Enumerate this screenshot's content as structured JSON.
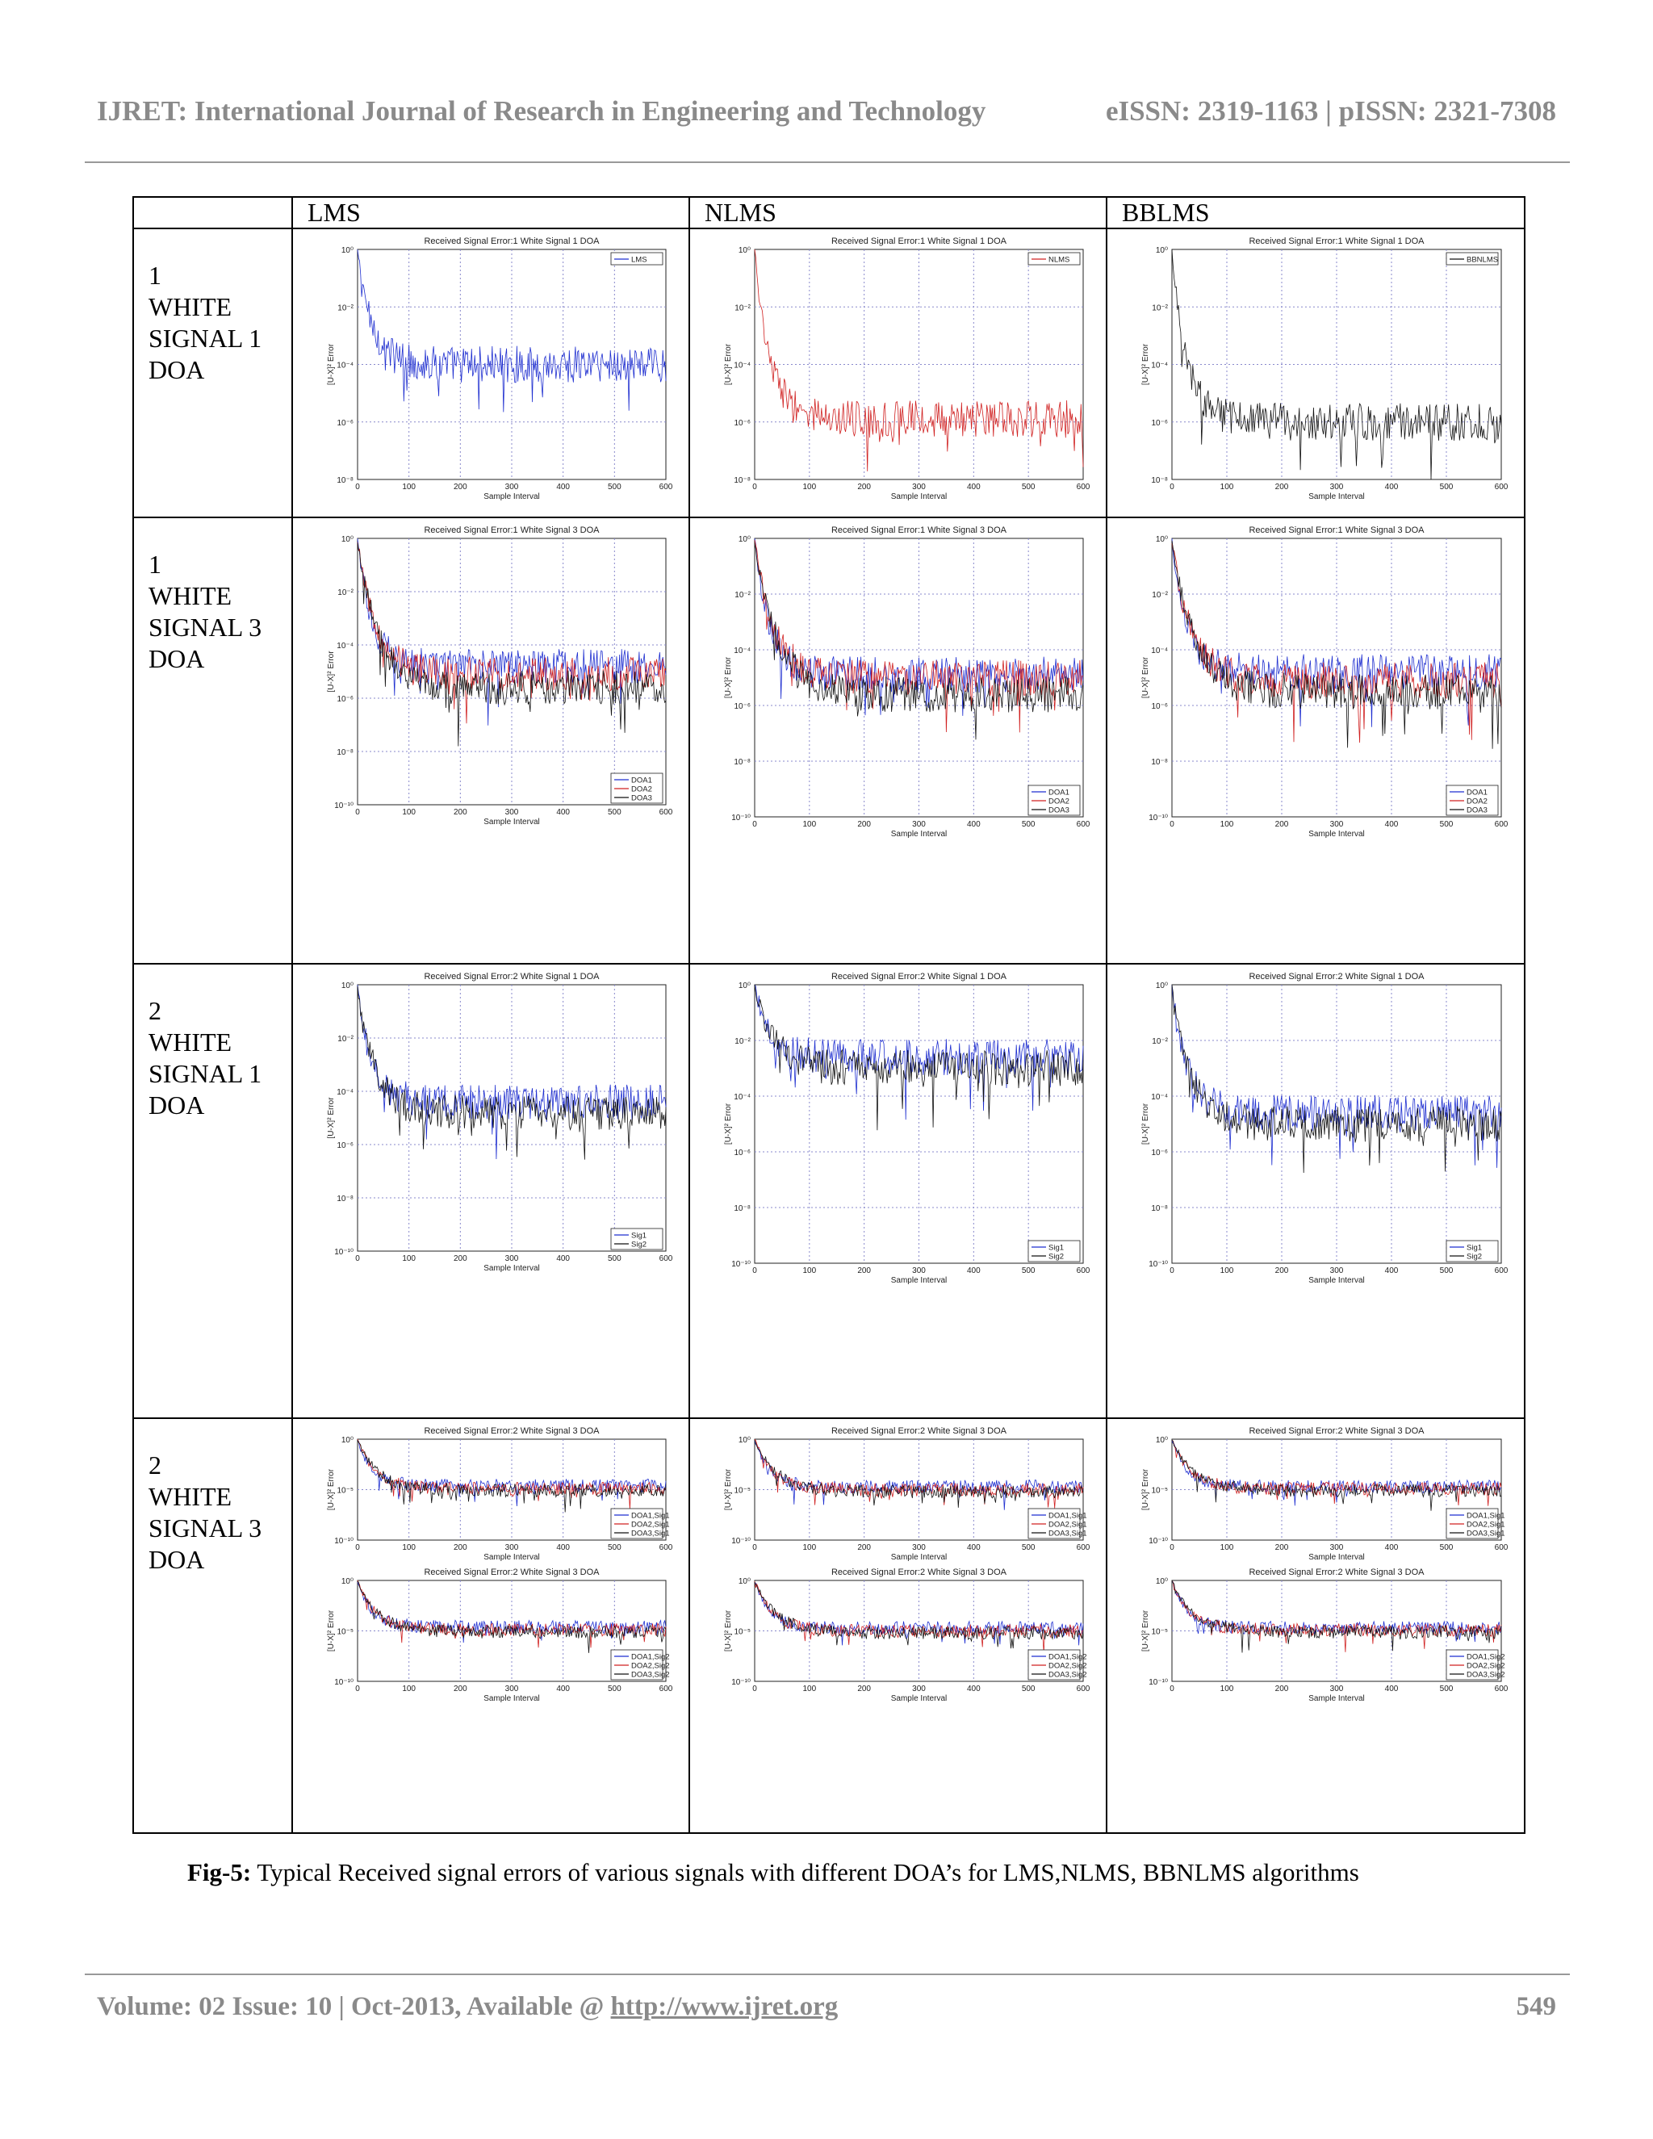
{
  "header": {
    "journal": "IJRET: International Journal of Research in Engineering and Technology",
    "issn": "eISSN: 2319-1163 | pISSN: 2321-7308"
  },
  "table": {
    "columns": [
      "",
      "LMS",
      "NLMS",
      "BBLMS"
    ],
    "rows": [
      {
        "label": [
          "1",
          "WHITE",
          "SIGNAL 1",
          "DOA"
        ]
      },
      {
        "label": [
          "1",
          "WHITE",
          "SIGNAL 3",
          "DOA"
        ]
      },
      {
        "label": [
          "2",
          "WHITE",
          "SIGNAL 1",
          "DOA"
        ]
      },
      {
        "label": [
          "2",
          "WHITE",
          "SIGNAL 3",
          "DOA"
        ]
      }
    ]
  },
  "colors": {
    "blue": "#1f2fd0",
    "red": "#d02020",
    "black": "#111111"
  },
  "chart_data": [
    {
      "id": "r1-lms",
      "type": "line",
      "title": "Received Signal Error:1 White Signal 1 DOA",
      "xlabel": "Sample Interval",
      "ylabel": "[U-X]² Error",
      "xlim": [
        0,
        600
      ],
      "xticks": [
        "0",
        "100",
        "200",
        "300",
        "400",
        "500",
        "600"
      ],
      "ylim_exp": [
        -8,
        0
      ],
      "yticks": [
        "10⁰",
        "10⁻²",
        "10⁻⁴",
        "10⁻⁶",
        "10⁻⁸"
      ],
      "legend_pos": "top-right",
      "series": [
        {
          "name": "LMS",
          "color": "blue",
          "level": -4
        }
      ]
    },
    {
      "id": "r1-nlms",
      "type": "line",
      "title": "Received Signal Error:1 White Signal 1 DOA",
      "xlabel": "Sample Interval",
      "ylabel": "[U-X]² Error",
      "xlim": [
        0,
        600
      ],
      "xticks": [
        "0",
        "100",
        "200",
        "300",
        "400",
        "500",
        "600"
      ],
      "ylim_exp": [
        -8,
        0
      ],
      "yticks": [
        "10⁰",
        "10⁻²",
        "10⁻⁴",
        "10⁻⁶",
        "10⁻⁸"
      ],
      "legend_pos": "top-right",
      "series": [
        {
          "name": "NLMS",
          "color": "red",
          "level": -5.9
        }
      ]
    },
    {
      "id": "r1-bblms",
      "type": "line",
      "title": "Received Signal Error:1 White Signal 1 DOA",
      "xlabel": "Sample Interval",
      "ylabel": "[U-X]² Error",
      "xlim": [
        0,
        600
      ],
      "xticks": [
        "0",
        "100",
        "200",
        "300",
        "400",
        "500",
        "600"
      ],
      "ylim_exp": [
        -8,
        0
      ],
      "yticks": [
        "10⁰",
        "10⁻²",
        "10⁻⁴",
        "10⁻⁶",
        "10⁻⁸"
      ],
      "legend_pos": "top-right",
      "series": [
        {
          "name": "BBNLMS",
          "color": "black",
          "level": -6
        }
      ]
    },
    {
      "id": "r2-lms",
      "type": "line",
      "title": "Received Signal Error:1 White Signal 3 DOA",
      "xlabel": "Sample Interval",
      "ylabel": "[U-X]² Error",
      "xlim": [
        0,
        600
      ],
      "xticks": [
        "0",
        "100",
        "200",
        "300",
        "400",
        "500",
        "600"
      ],
      "ylim_exp": [
        -10,
        0
      ],
      "yticks": [
        "10⁰",
        "10⁻²",
        "10⁻⁴",
        "10⁻⁶",
        "10⁻⁸",
        "10⁻¹⁰"
      ],
      "legend_pos": "bottom-right",
      "series": [
        {
          "name": "DOA1",
          "color": "blue",
          "level": -4.8
        },
        {
          "name": "DOA2",
          "color": "red",
          "level": -5.1
        },
        {
          "name": "DOA3",
          "color": "black",
          "level": -5.6
        }
      ]
    },
    {
      "id": "r2-nlms",
      "type": "line",
      "title": "Received Signal Error:1 White Signal 3 DOA",
      "xlabel": "Sample Interval",
      "ylabel": "[U-X]² Error",
      "xlim": [
        0,
        600
      ],
      "xticks": [
        "0",
        "100",
        "200",
        "300",
        "400",
        "500",
        "600"
      ],
      "ylim_exp": [
        -10,
        0
      ],
      "yticks": [
        "10⁰",
        "10⁻²",
        "10⁻⁴",
        "10⁻⁶",
        "10⁻⁸",
        "10⁻¹⁰"
      ],
      "legend_pos": "bottom-right",
      "series": [
        {
          "name": "DOA1",
          "color": "blue",
          "level": -4.9
        },
        {
          "name": "DOA2",
          "color": "red",
          "level": -5.0
        },
        {
          "name": "DOA3",
          "color": "black",
          "level": -5.6
        }
      ]
    },
    {
      "id": "r2-bblms",
      "type": "line",
      "title": "Received Signal Error:1 White Signal 3 DOA",
      "xlabel": "Sample Interval",
      "ylabel": "[U-X]² Error",
      "xlim": [
        0,
        600
      ],
      "xticks": [
        "0",
        "100",
        "200",
        "300",
        "400",
        "500",
        "600"
      ],
      "ylim_exp": [
        -10,
        0
      ],
      "yticks": [
        "10⁰",
        "10⁻²",
        "10⁻⁴",
        "10⁻⁶",
        "10⁻⁸",
        "10⁻¹⁰"
      ],
      "legend_pos": "bottom-right",
      "series": [
        {
          "name": "DOA1",
          "color": "blue",
          "level": -4.8
        },
        {
          "name": "DOA2",
          "color": "red",
          "level": -5.1
        },
        {
          "name": "DOA3",
          "color": "black",
          "level": -5.5
        }
      ]
    },
    {
      "id": "r3-lms",
      "type": "line",
      "title": "Received Signal Error:2 White Signal 1 DOA",
      "xlabel": "Sample Interval",
      "ylabel": "[U-X]² Error",
      "xlim": [
        0,
        600
      ],
      "xticks": [
        "0",
        "100",
        "200",
        "300",
        "400",
        "500",
        "600"
      ],
      "ylim_exp": [
        -10,
        0
      ],
      "yticks": [
        "10⁰",
        "10⁻²",
        "10⁻⁴",
        "10⁻⁶",
        "10⁻⁸",
        "10⁻¹⁰"
      ],
      "legend_pos": "bottom-right",
      "series": [
        {
          "name": "Sig1",
          "color": "blue",
          "level": -4.4
        },
        {
          "name": "Sig2",
          "color": "black",
          "level": -4.8
        }
      ]
    },
    {
      "id": "r3-nlms",
      "type": "line",
      "title": "Received Signal Error:2 White Signal 1 DOA",
      "xlabel": "Sample Interval",
      "ylabel": "[U-X]² Error",
      "xlim": [
        0,
        600
      ],
      "xticks": [
        "0",
        "100",
        "200",
        "300",
        "400",
        "500",
        "600"
      ],
      "ylim_exp": [
        -10,
        0
      ],
      "yticks": [
        "10⁰",
        "10⁻²",
        "10⁻⁴",
        "10⁻⁶",
        "10⁻⁸",
        "10⁻¹⁰"
      ],
      "legend_pos": "bottom-right",
      "series": [
        {
          "name": "Sig1",
          "color": "blue",
          "level": -2.6
        },
        {
          "name": "Sig2",
          "color": "black",
          "level": -3.0
        }
      ]
    },
    {
      "id": "r3-bblms",
      "type": "line",
      "title": "Received Signal Error:2 White Signal 1 DOA",
      "xlabel": "Sample Interval",
      "ylabel": "[U-X]² Error",
      "xlim": [
        0,
        600
      ],
      "xticks": [
        "0",
        "100",
        "200",
        "300",
        "400",
        "500",
        "600"
      ],
      "ylim_exp": [
        -10,
        0
      ],
      "yticks": [
        "10⁰",
        "10⁻²",
        "10⁻⁴",
        "10⁻⁶",
        "10⁻⁸",
        "10⁻¹⁰"
      ],
      "legend_pos": "bottom-right",
      "series": [
        {
          "name": "Sig1",
          "color": "blue",
          "level": -4.6
        },
        {
          "name": "Sig2",
          "color": "black",
          "level": -5.0
        }
      ]
    },
    {
      "id": "r4-lms-a",
      "type": "line",
      "title": "Received Signal Error:2 White Signal 3 DOA",
      "xlabel": "Sample Interval",
      "ylabel": "[U-X]² Error",
      "xlim": [
        0,
        600
      ],
      "xticks": [
        "0",
        "100",
        "200",
        "300",
        "400",
        "500",
        "600"
      ],
      "ylim_exp": [
        -10,
        0
      ],
      "yticks": [
        "10⁰",
        "10⁻⁵",
        "10⁻¹⁰"
      ],
      "legend_pos": "bottom-right",
      "series": [
        {
          "name": "DOA1,Sig1",
          "color": "blue",
          "level": -4.6
        },
        {
          "name": "DOA2,Sig1",
          "color": "red",
          "level": -4.9
        },
        {
          "name": "DOA3,Sig1",
          "color": "black",
          "level": -5.1
        }
      ]
    },
    {
      "id": "r4-lms-b",
      "type": "line",
      "title": "Received Signal Error:2 White Signal 3 DOA",
      "xlabel": "Sample Interval",
      "ylabel": "[U-X]² Error",
      "xlim": [
        0,
        600
      ],
      "xticks": [
        "0",
        "100",
        "200",
        "300",
        "400",
        "500",
        "600"
      ],
      "ylim_exp": [
        -10,
        0
      ],
      "yticks": [
        "10⁰",
        "10⁻⁵",
        "10⁻¹⁰"
      ],
      "legend_pos": "bottom-right",
      "series": [
        {
          "name": "DOA1,Sig2",
          "color": "blue",
          "level": -4.6
        },
        {
          "name": "DOA2,Sig2",
          "color": "red",
          "level": -4.9
        },
        {
          "name": "DOA3,Sig2",
          "color": "black",
          "level": -5.1
        }
      ]
    },
    {
      "id": "r4-nlms-a",
      "type": "line",
      "title": "Received Signal Error:2 White Signal 3 DOA",
      "xlabel": "Sample Interval",
      "ylabel": "[U-X]² Error",
      "xlim": [
        0,
        600
      ],
      "xticks": [
        "0",
        "100",
        "200",
        "300",
        "400",
        "500",
        "600"
      ],
      "ylim_exp": [
        -10,
        0
      ],
      "yticks": [
        "10⁰",
        "10⁻⁵",
        "10⁻¹⁰"
      ],
      "legend_pos": "bottom-right",
      "series": [
        {
          "name": "DOA1,Sig1",
          "color": "blue",
          "level": -4.7
        },
        {
          "name": "DOA2,Sig1",
          "color": "red",
          "level": -5.0
        },
        {
          "name": "DOA3,Sig1",
          "color": "black",
          "level": -5.2
        }
      ]
    },
    {
      "id": "r4-nlms-b",
      "type": "line",
      "title": "Received Signal Error:2 White Signal 3 DOA",
      "xlabel": "Sample Interval",
      "ylabel": "[U-X]² Error",
      "xlim": [
        0,
        600
      ],
      "xticks": [
        "0",
        "100",
        "200",
        "300",
        "400",
        "500",
        "600"
      ],
      "ylim_exp": [
        -10,
        0
      ],
      "yticks": [
        "10⁰",
        "10⁻⁵",
        "10⁻¹⁰"
      ],
      "legend_pos": "bottom-right",
      "series": [
        {
          "name": "DOA1,Sig2",
          "color": "blue",
          "level": -4.7
        },
        {
          "name": "DOA2,Sig2",
          "color": "red",
          "level": -5.0
        },
        {
          "name": "DOA3,Sig2",
          "color": "black",
          "level": -5.2
        }
      ]
    },
    {
      "id": "r4-bblms-a",
      "type": "line",
      "title": "Received Signal Error:2 White Signal 3 DOA",
      "xlabel": "Sample Interval",
      "ylabel": "[U-X]² Error",
      "xlim": [
        0,
        600
      ],
      "xticks": [
        "0",
        "100",
        "200",
        "300",
        "400",
        "500",
        "600"
      ],
      "ylim_exp": [
        -10,
        0
      ],
      "yticks": [
        "10⁰",
        "10⁻⁵",
        "10⁻¹⁰"
      ],
      "legend_pos": "bottom-right",
      "series": [
        {
          "name": "DOA1,Sig1",
          "color": "blue",
          "level": -4.7
        },
        {
          "name": "DOA2,Sig1",
          "color": "red",
          "level": -4.9
        },
        {
          "name": "DOA3,Sig1",
          "color": "black",
          "level": -5.1
        }
      ]
    },
    {
      "id": "r4-bblms-b",
      "type": "line",
      "title": "Received Signal Error:2 White Signal 3 DOA",
      "xlabel": "Sample Interval",
      "ylabel": "[U-X]² Error",
      "xlim": [
        0,
        600
      ],
      "xticks": [
        "0",
        "100",
        "200",
        "300",
        "400",
        "500",
        "600"
      ],
      "ylim_exp": [
        -10,
        0
      ],
      "yticks": [
        "10⁰",
        "10⁻⁵",
        "10⁻¹⁰"
      ],
      "legend_pos": "bottom-right",
      "series": [
        {
          "name": "DOA1,Sig2",
          "color": "blue",
          "level": -4.7
        },
        {
          "name": "DOA2,Sig2",
          "color": "red",
          "level": -4.9
        },
        {
          "name": "DOA3,Sig2",
          "color": "black",
          "level": -5.1
        }
      ]
    }
  ],
  "caption": {
    "label": "Fig-5:",
    "text": " Typical Received signal errors of various signals with different DOA’s  for LMS,NLMS, BBNLMS algorithms"
  },
  "footer": {
    "volume": "Volume: 02 Issue: 10 | Oct-2013, Available @ ",
    "link": "http://www.ijret.org",
    "page": "549"
  }
}
